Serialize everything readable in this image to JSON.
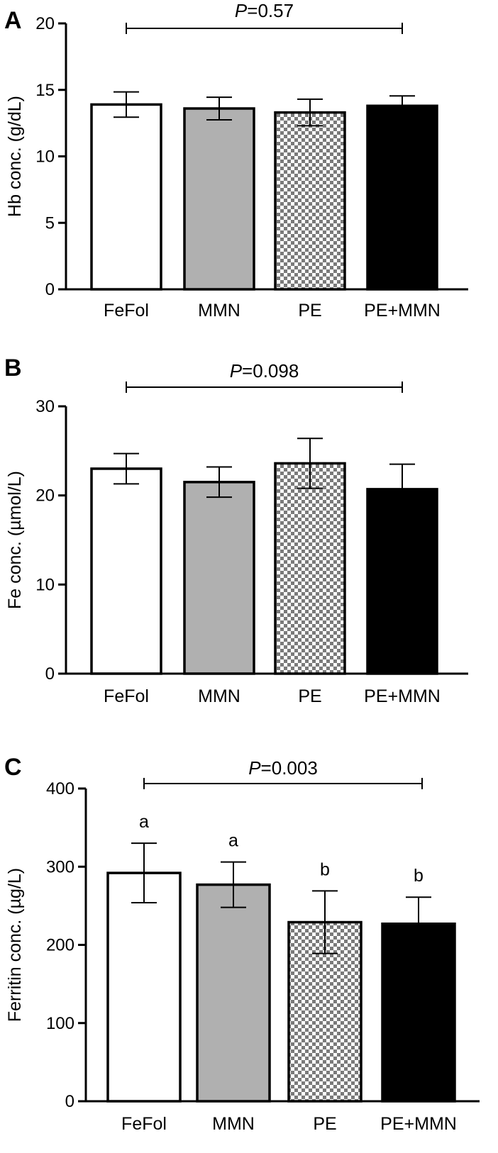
{
  "chart_data": [
    {
      "type": "bar",
      "panel_label": "A",
      "categories": [
        "FeFol",
        "MMN",
        "PE",
        "PE+MMN"
      ],
      "values": [
        13.9,
        13.6,
        13.3,
        13.8
      ],
      "error": [
        0.95,
        0.85,
        1.0,
        0.75
      ],
      "fills": [
        "white",
        "gray",
        "checker",
        "black"
      ],
      "ylabel": "Hb conc. (g/dL)",
      "ylim": [
        0,
        20
      ],
      "yticks": [
        0,
        5,
        10,
        15,
        20
      ],
      "p_prefix": "P",
      "p_value": "=0.57",
      "group_letters": [
        "",
        "",
        "",
        ""
      ]
    },
    {
      "type": "bar",
      "panel_label": "B",
      "categories": [
        "FeFol",
        "MMN",
        "PE",
        "PE+MMN"
      ],
      "values": [
        23.0,
        21.5,
        23.6,
        20.7
      ],
      "error": [
        1.7,
        1.7,
        2.8,
        2.8
      ],
      "fills": [
        "white",
        "gray",
        "checker",
        "black"
      ],
      "ylabel": "Fe conc. (µmol/L)",
      "ylim": [
        0,
        30
      ],
      "yticks": [
        0,
        10,
        20,
        30
      ],
      "p_prefix": "P",
      "p_value": "=0.098",
      "group_letters": [
        "",
        "",
        "",
        ""
      ]
    },
    {
      "type": "bar",
      "panel_label": "C",
      "categories": [
        "FeFol",
        "MMN",
        "PE",
        "PE+MMN"
      ],
      "values": [
        292,
        277,
        229,
        227
      ],
      "error": [
        38,
        29,
        40,
        34
      ],
      "fills": [
        "white",
        "gray",
        "checker",
        "black"
      ],
      "ylabel": "Ferritin conc. (µg/L)",
      "ylim": [
        0,
        400
      ],
      "yticks": [
        0,
        100,
        200,
        300,
        400
      ],
      "p_prefix": "P",
      "p_value": "=0.003",
      "group_letters": [
        "a",
        "a",
        "b",
        "b"
      ]
    }
  ]
}
